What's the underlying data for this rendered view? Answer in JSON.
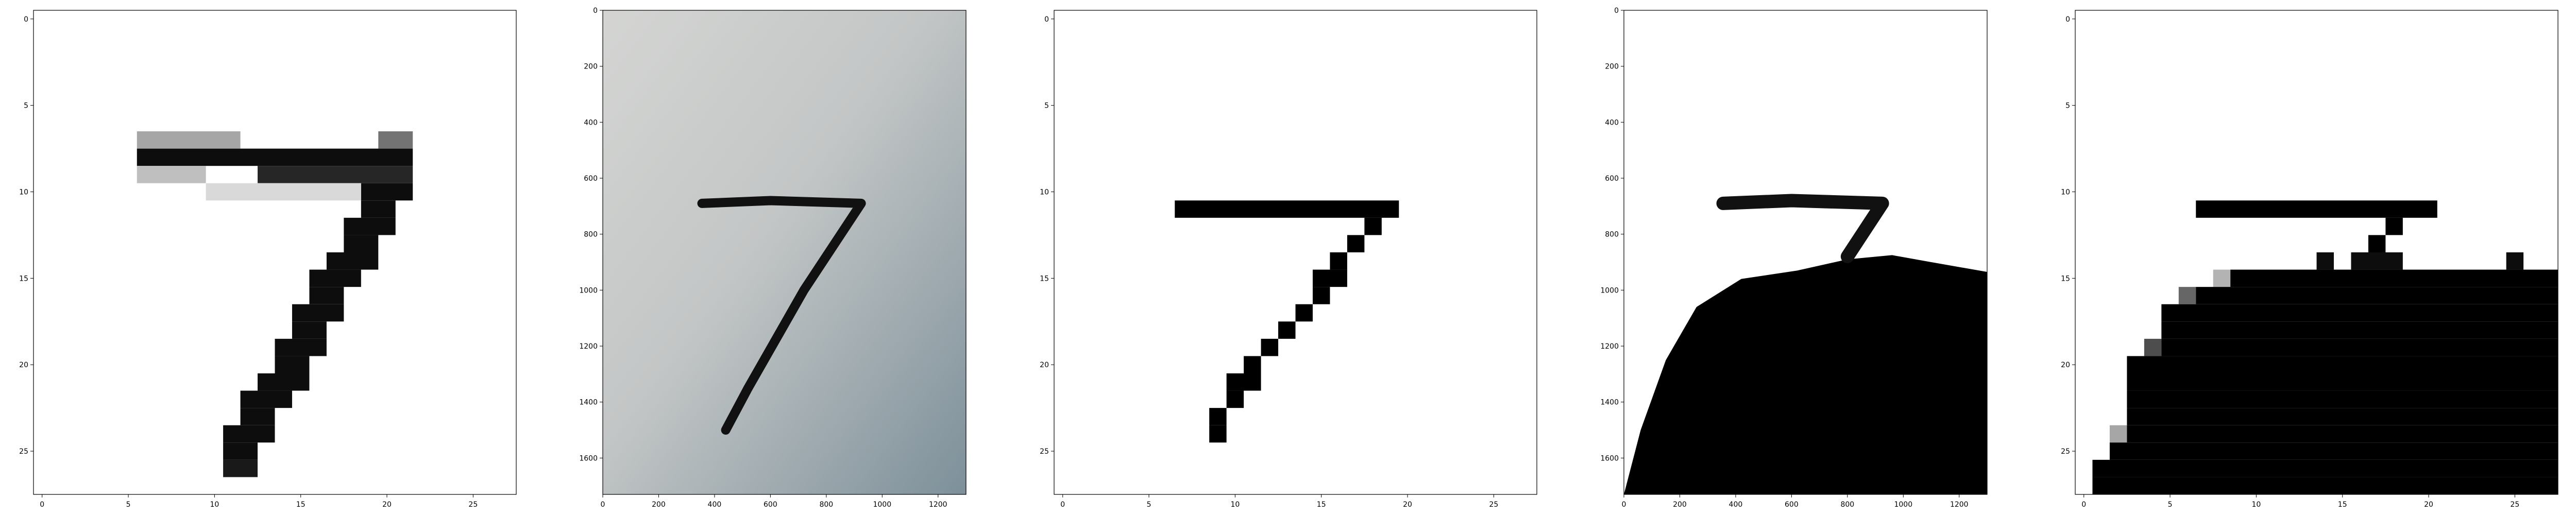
{
  "figure": {
    "background": "#ffffff",
    "axes_color": "#000000"
  },
  "chart_data": [
    {
      "type": "heatmap",
      "content": "mnist-digit-7-grayscale",
      "xlim": [
        -0.5,
        27.5
      ],
      "ylim": [
        27.5,
        -0.5
      ],
      "xticks": [
        0,
        5,
        10,
        15,
        20,
        25
      ],
      "yticks": [
        0,
        5,
        10,
        15,
        20,
        25
      ],
      "cmap": "gray_r",
      "strokes": [
        {
          "row": 8,
          "cols": [
            [
              6,
              21
            ]
          ],
          "value": 0.95
        },
        {
          "row": 7,
          "cols": [
            [
              6,
              11
            ]
          ],
          "value": 0.35
        },
        {
          "row": 7,
          "cols": [
            [
              20,
              21
            ]
          ],
          "value": 0.55
        },
        {
          "row": 9,
          "cols": [
            [
              6,
              9
            ]
          ],
          "value": 0.25
        },
        {
          "row": 9,
          "cols": [
            [
              13,
              21
            ]
          ],
          "value": 0.85
        },
        {
          "row": 10,
          "cols": [
            [
              19,
              21
            ]
          ],
          "value": 0.95
        },
        {
          "row": 10,
          "cols": [
            [
              10,
              18
            ]
          ],
          "value": 0.15
        },
        {
          "row": 11,
          "cols": [
            [
              19,
              20
            ]
          ],
          "value": 0.95
        },
        {
          "row": 12,
          "cols": [
            [
              18,
              20
            ]
          ],
          "value": 0.95
        },
        {
          "row": 13,
          "cols": [
            [
              18,
              19
            ]
          ],
          "value": 0.95
        },
        {
          "row": 14,
          "cols": [
            [
              17,
              19
            ]
          ],
          "value": 0.95
        },
        {
          "row": 15,
          "cols": [
            [
              16,
              18
            ]
          ],
          "value": 0.95
        },
        {
          "row": 16,
          "cols": [
            [
              16,
              17
            ]
          ],
          "value": 0.95
        },
        {
          "row": 17,
          "cols": [
            [
              15,
              17
            ]
          ],
          "value": 0.95
        },
        {
          "row": 18,
          "cols": [
            [
              15,
              16
            ]
          ],
          "value": 0.95
        },
        {
          "row": 19,
          "cols": [
            [
              14,
              16
            ]
          ],
          "value": 0.95
        },
        {
          "row": 20,
          "cols": [
            [
              14,
              15
            ]
          ],
          "value": 0.95
        },
        {
          "row": 21,
          "cols": [
            [
              13,
              15
            ]
          ],
          "value": 0.95
        },
        {
          "row": 22,
          "cols": [
            [
              12,
              14
            ]
          ],
          "value": 0.95
        },
        {
          "row": 23,
          "cols": [
            [
              12,
              13
            ]
          ],
          "value": 0.95
        },
        {
          "row": 24,
          "cols": [
            [
              11,
              13
            ]
          ],
          "value": 0.95
        },
        {
          "row": 25,
          "cols": [
            [
              11,
              12
            ]
          ],
          "value": 0.95
        },
        {
          "row": 26,
          "cols": [
            [
              11,
              12
            ]
          ],
          "value": 0.9
        }
      ]
    },
    {
      "type": "image",
      "content": "photo-handwritten-7",
      "xlim": [
        0,
        1300
      ],
      "ylim": [
        1730,
        0
      ],
      "xticks": [
        0,
        200,
        400,
        600,
        800,
        1000,
        1200
      ],
      "yticks": [
        0,
        200,
        400,
        600,
        800,
        1000,
        1200,
        1400,
        1600
      ],
      "stroke_points": [
        [
          355,
          690
        ],
        [
          600,
          680
        ],
        [
          925,
          690
        ],
        [
          720,
          1000
        ],
        [
          520,
          1350
        ],
        [
          440,
          1500
        ]
      ]
    },
    {
      "type": "heatmap",
      "content": "binarized-digit-7",
      "xlim": [
        -0.5,
        27.5
      ],
      "ylim": [
        27.5,
        -0.5
      ],
      "xticks": [
        0,
        5,
        10,
        15,
        20,
        25
      ],
      "yticks": [
        0,
        5,
        10,
        15,
        20,
        25
      ],
      "cmap": "gray_r",
      "strokes": [
        {
          "row": 11,
          "cols": [
            [
              7,
              19
            ]
          ],
          "value": 1.0
        },
        {
          "row": 12,
          "cols": [
            [
              18,
              18
            ]
          ],
          "value": 1.0
        },
        {
          "row": 13,
          "cols": [
            [
              17,
              17
            ]
          ],
          "value": 1.0
        },
        {
          "row": 14,
          "cols": [
            [
              16,
              16
            ]
          ],
          "value": 1.0
        },
        {
          "row": 15,
          "cols": [
            [
              15,
              16
            ]
          ],
          "value": 1.0
        },
        {
          "row": 16,
          "cols": [
            [
              15,
              15
            ]
          ],
          "value": 1.0
        },
        {
          "row": 17,
          "cols": [
            [
              14,
              14
            ]
          ],
          "value": 1.0
        },
        {
          "row": 18,
          "cols": [
            [
              13,
              13
            ]
          ],
          "value": 1.0
        },
        {
          "row": 19,
          "cols": [
            [
              12,
              12
            ]
          ],
          "value": 1.0
        },
        {
          "row": 20,
          "cols": [
            [
              11,
              11
            ]
          ],
          "value": 1.0
        },
        {
          "row": 21,
          "cols": [
            [
              10,
              11
            ]
          ],
          "value": 1.0
        },
        {
          "row": 22,
          "cols": [
            [
              10,
              10
            ]
          ],
          "value": 1.0
        },
        {
          "row": 23,
          "cols": [
            [
              9,
              9
            ]
          ],
          "value": 1.0
        },
        {
          "row": 24,
          "cols": [
            [
              9,
              9
            ]
          ],
          "value": 1.0
        }
      ]
    },
    {
      "type": "image",
      "content": "thresholded-photo-7",
      "xlim": [
        0,
        1300
      ],
      "ylim": [
        1730,
        0
      ],
      "xticks": [
        0,
        200,
        400,
        600,
        800,
        1000,
        1200
      ],
      "yticks": [
        0,
        200,
        400,
        600,
        800,
        1000,
        1200,
        1400,
        1600
      ],
      "stroke_points": [
        [
          355,
          690
        ],
        [
          600,
          680
        ],
        [
          925,
          690
        ],
        [
          800,
          880
        ]
      ],
      "mass_outline": [
        [
          0,
          1730
        ],
        [
          60,
          1500
        ],
        [
          150,
          1250
        ],
        [
          260,
          1060
        ],
        [
          420,
          960
        ],
        [
          620,
          930
        ],
        [
          800,
          890
        ],
        [
          960,
          875
        ],
        [
          1100,
          900
        ],
        [
          1300,
          935
        ],
        [
          1300,
          1730
        ]
      ]
    },
    {
      "type": "heatmap",
      "content": "downsampled-thresholded-7",
      "xlim": [
        -0.5,
        27.5
      ],
      "ylim": [
        27.5,
        -0.5
      ],
      "xticks": [
        0,
        5,
        10,
        15,
        20,
        25
      ],
      "yticks": [
        0,
        5,
        10,
        15,
        20,
        25
      ],
      "cmap": "gray_r",
      "strokes": [
        {
          "row": 11,
          "cols": [
            [
              7,
              20
            ]
          ],
          "value": 1.0
        },
        {
          "row": 12,
          "cols": [
            [
              18,
              18
            ]
          ],
          "value": 1.0
        },
        {
          "row": 13,
          "cols": [
            [
              17,
              17
            ]
          ],
          "value": 1.0
        },
        {
          "row": 14,
          "cols": [
            [
              14,
              14
            ],
            [
              16,
              18
            ],
            [
              25,
              25
            ]
          ],
          "value": 0.95
        },
        {
          "row": 15,
          "cols": [
            [
              8,
              8
            ]
          ],
          "value": 0.3
        },
        {
          "row": 15,
          "cols": [
            [
              9,
              27
            ]
          ],
          "value": 1.0
        },
        {
          "row": 16,
          "cols": [
            [
              6,
              6
            ]
          ],
          "value": 0.6
        },
        {
          "row": 16,
          "cols": [
            [
              7,
              27
            ]
          ],
          "value": 1.0
        },
        {
          "row": 17,
          "cols": [
            [
              5,
              27
            ]
          ],
          "value": 1.0
        },
        {
          "row": 18,
          "cols": [
            [
              5,
              27
            ]
          ],
          "value": 1.0
        },
        {
          "row": 19,
          "cols": [
            [
              4,
              4
            ]
          ],
          "value": 0.7
        },
        {
          "row": 19,
          "cols": [
            [
              5,
              27
            ]
          ],
          "value": 1.0
        },
        {
          "row": 20,
          "cols": [
            [
              3,
              27
            ]
          ],
          "value": 1.0
        },
        {
          "row": 21,
          "cols": [
            [
              3,
              27
            ]
          ],
          "value": 1.0
        },
        {
          "row": 22,
          "cols": [
            [
              3,
              27
            ]
          ],
          "value": 1.0
        },
        {
          "row": 23,
          "cols": [
            [
              3,
              27
            ]
          ],
          "value": 1.0
        },
        {
          "row": 24,
          "cols": [
            [
              2,
              2
            ]
          ],
          "value": 0.35
        },
        {
          "row": 24,
          "cols": [
            [
              3,
              27
            ]
          ],
          "value": 1.0
        },
        {
          "row": 25,
          "cols": [
            [
              2,
              27
            ]
          ],
          "value": 1.0
        },
        {
          "row": 26,
          "cols": [
            [
              1,
              27
            ]
          ],
          "value": 1.0
        },
        {
          "row": 27,
          "cols": [
            [
              1,
              27
            ]
          ],
          "value": 1.0
        }
      ]
    }
  ]
}
